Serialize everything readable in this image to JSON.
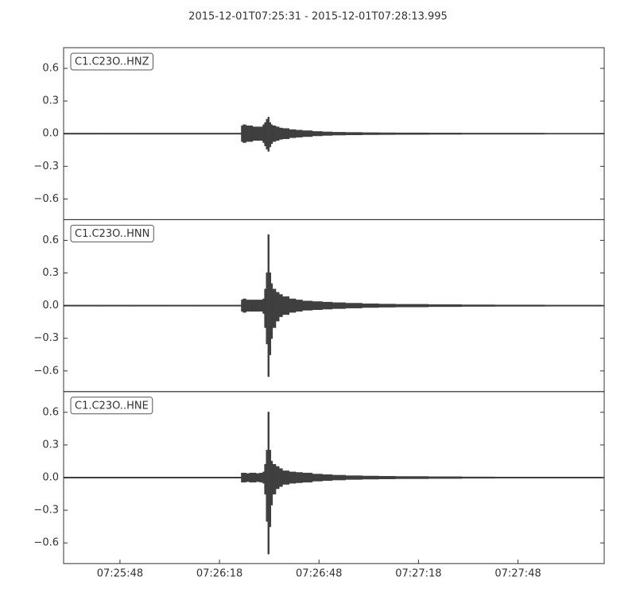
{
  "title": "2015-12-01T07:25:31  -  2015-12-01T07:28:13.995",
  "chart_data": [
    {
      "type": "waveform",
      "label": "C1.C23O..HNZ",
      "color": "#3f3f3f",
      "xlim": [
        0,
        162.995
      ],
      "ylim": [
        -0.79,
        0.79
      ],
      "yticks": [
        {
          "value": -0.6,
          "label": "−0.6"
        },
        {
          "value": -0.3,
          "label": "−0.3"
        },
        {
          "value": 0,
          "label": "0.0"
        },
        0.3,
        0.6
      ],
      "x": [
        0,
        10,
        20,
        30,
        40,
        50,
        53,
        53.5,
        54,
        55,
        56,
        57,
        58,
        59,
        60,
        60.5,
        61,
        61.5,
        62,
        62.5,
        63,
        64,
        65,
        66,
        68,
        70,
        72,
        75,
        78,
        81,
        85,
        90,
        95,
        100,
        110,
        120,
        130,
        145,
        162
      ],
      "max": [
        0.003,
        0.003,
        0.003,
        0.003,
        0.003,
        0.003,
        0.003,
        0.07,
        0.08,
        0.07,
        0.07,
        0.06,
        0.06,
        0.06,
        0.08,
        0.1,
        0.13,
        0.15,
        0.1,
        0.08,
        0.07,
        0.06,
        0.05,
        0.045,
        0.035,
        0.03,
        0.025,
        0.018,
        0.014,
        0.011,
        0.009,
        0.007,
        0.006,
        0.005,
        0.004,
        0.003,
        0.003,
        0.002,
        0.002
      ],
      "min": [
        -0.003,
        -0.003,
        -0.003,
        -0.003,
        -0.003,
        -0.003,
        -0.003,
        -0.07,
        -0.08,
        -0.07,
        -0.07,
        -0.06,
        -0.06,
        -0.06,
        -0.08,
        -0.11,
        -0.14,
        -0.16,
        -0.12,
        -0.09,
        -0.07,
        -0.06,
        -0.05,
        -0.045,
        -0.035,
        -0.03,
        -0.025,
        -0.018,
        -0.014,
        -0.011,
        -0.009,
        -0.007,
        -0.006,
        -0.005,
        -0.004,
        -0.003,
        -0.003,
        -0.002,
        -0.002
      ]
    },
    {
      "type": "waveform",
      "label": "C1.C23O..HNN",
      "color": "#3f3f3f",
      "xlim": [
        0,
        162.995
      ],
      "ylim": [
        -0.79,
        0.79
      ],
      "yticks": [
        {
          "value": -0.6,
          "label": "−0.6"
        },
        {
          "value": -0.3,
          "label": "−0.3"
        },
        {
          "value": 0,
          "label": "0.0"
        },
        0.3,
        0.6
      ],
      "x": [
        0,
        10,
        20,
        30,
        40,
        50,
        53,
        53.5,
        54,
        55,
        56,
        57,
        58,
        59,
        60,
        60.5,
        61,
        61.5,
        62,
        62.5,
        63,
        64,
        65,
        66,
        68,
        70,
        72,
        75,
        78,
        81,
        85,
        90,
        95,
        100,
        110,
        120,
        130,
        145,
        162
      ],
      "max": [
        0.003,
        0.003,
        0.003,
        0.003,
        0.003,
        0.003,
        0.003,
        0.05,
        0.06,
        0.05,
        0.05,
        0.05,
        0.05,
        0.05,
        0.06,
        0.15,
        0.3,
        0.65,
        0.3,
        0.2,
        0.15,
        0.12,
        0.1,
        0.08,
        0.06,
        0.05,
        0.04,
        0.035,
        0.03,
        0.025,
        0.02,
        0.015,
        0.012,
        0.01,
        0.007,
        0.005,
        0.004,
        0.003,
        0.002
      ],
      "min": [
        -0.003,
        -0.003,
        -0.003,
        -0.003,
        -0.003,
        -0.003,
        -0.003,
        -0.05,
        -0.06,
        -0.05,
        -0.05,
        -0.05,
        -0.05,
        -0.05,
        -0.07,
        -0.2,
        -0.35,
        -0.65,
        -0.45,
        -0.3,
        -0.2,
        -0.14,
        -0.1,
        -0.08,
        -0.06,
        -0.05,
        -0.04,
        -0.035,
        -0.03,
        -0.025,
        -0.02,
        -0.015,
        -0.012,
        -0.01,
        -0.007,
        -0.005,
        -0.004,
        -0.003,
        -0.002
      ]
    },
    {
      "type": "waveform",
      "label": "C1.C23O..HNE",
      "color": "#3f3f3f",
      "xlim": [
        0,
        162.995
      ],
      "ylim": [
        -0.79,
        0.79
      ],
      "yticks": [
        {
          "value": -0.6,
          "label": "−0.6"
        },
        {
          "value": -0.3,
          "label": "−0.3"
        },
        {
          "value": 0,
          "label": "0.0"
        },
        0.3,
        0.6
      ],
      "xticks": [
        {
          "value": 17,
          "label": "07:25:48"
        },
        {
          "value": 47,
          "label": "07:26:18"
        },
        {
          "value": 77,
          "label": "07:26:48"
        },
        {
          "value": 107,
          "label": "07:27:18"
        },
        {
          "value": 137,
          "label": "07:27:48"
        }
      ],
      "x": [
        0,
        10,
        20,
        30,
        40,
        50,
        53,
        53.5,
        54,
        55,
        56,
        57,
        58,
        59,
        60,
        60.5,
        61,
        61.5,
        62,
        62.5,
        63,
        64,
        65,
        66,
        68,
        70,
        72,
        75,
        78,
        81,
        85,
        90,
        95,
        100,
        110,
        120,
        130,
        145,
        162
      ],
      "max": [
        0.003,
        0.003,
        0.003,
        0.003,
        0.003,
        0.003,
        0.003,
        0.04,
        0.04,
        0.035,
        0.04,
        0.04,
        0.035,
        0.04,
        0.05,
        0.12,
        0.25,
        0.6,
        0.25,
        0.15,
        0.12,
        0.1,
        0.08,
        0.06,
        0.05,
        0.045,
        0.04,
        0.03,
        0.025,
        0.02,
        0.015,
        0.012,
        0.01,
        0.008,
        0.006,
        0.004,
        0.003,
        0.003,
        0.002
      ],
      "min": [
        -0.003,
        -0.003,
        -0.003,
        -0.003,
        -0.003,
        -0.003,
        -0.003,
        -0.04,
        -0.04,
        -0.035,
        -0.04,
        -0.04,
        -0.035,
        -0.04,
        -0.05,
        -0.15,
        -0.4,
        -0.7,
        -0.45,
        -0.25,
        -0.15,
        -0.1,
        -0.08,
        -0.06,
        -0.05,
        -0.045,
        -0.04,
        -0.03,
        -0.025,
        -0.02,
        -0.015,
        -0.012,
        -0.01,
        -0.008,
        -0.006,
        -0.004,
        -0.003,
        -0.003,
        -0.002
      ]
    }
  ]
}
